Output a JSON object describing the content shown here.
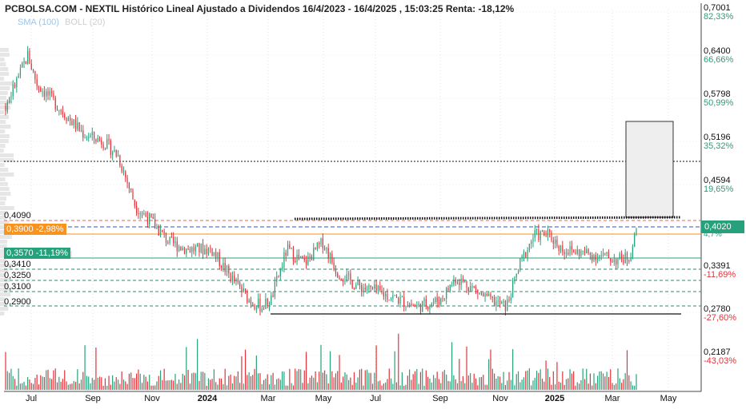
{
  "header": {
    "title": "PCBOLSA.COM - NEXTIL Histórico Lineal Ajustado a Dividendos 16/4/2023 - 16/4/2025 , 15:03:25 Renta: -18,12%",
    "indicators": [
      "SMA (100)",
      "BOLL (20)"
    ]
  },
  "chart_data": {
    "type": "candlestick",
    "title": "PCBOLSA.COM - NEXTIL Histórico Lineal Ajustado a Dividendos 16/4/2023 - 16/4/2025 , 15:03:25 Renta: -18,12%",
    "x_range": [
      "2023-06-01",
      "2025-05-31"
    ],
    "y_range": [
      0.278,
      0.7001
    ],
    "x_ticks": [
      "Jul",
      "Sep",
      "Nov",
      "2024",
      "Mar",
      "May",
      "Jul",
      "Sep",
      "Nov",
      "2025",
      "Mar",
      "May"
    ],
    "price_axis": [
      {
        "price": "0,7001",
        "pct": "82,33%"
      },
      {
        "price": "0,6400",
        "pct": "66,66%"
      },
      {
        "price": "0,5798",
        "pct": "50,99%"
      },
      {
        "price": "0,5196",
        "pct": "35,32%"
      },
      {
        "price": "0,4594",
        "pct": "19,65%"
      },
      {
        "price": "0,3391",
        "pct": "-11,69%"
      },
      {
        "price": "0,2780",
        "pct": "-27,60%"
      },
      {
        "price": "0,2187",
        "pct": "-43,03%"
      }
    ],
    "current": {
      "price": "0,4020",
      "pct": "4,7%"
    },
    "levels": {
      "l4090": "0,4090",
      "l3900": "0,3900",
      "l3900_pct": "-2,98%",
      "l3570": "0,3570",
      "l3570_pct": "-11,19%",
      "l3410": "0,3410",
      "l3250": "0,3250",
      "l3100": "0,3100",
      "l2900": "0,2900"
    },
    "anchors": [
      {
        "date": "2023-06-01",
        "close": 0.57
      },
      {
        "date": "2023-06-15",
        "close": 0.61
      },
      {
        "date": "2023-06-25",
        "close": 0.64
      },
      {
        "date": "2023-07-05",
        "close": 0.6
      },
      {
        "date": "2023-07-20",
        "close": 0.58
      },
      {
        "date": "2023-08-10",
        "close": 0.55
      },
      {
        "date": "2023-08-25",
        "close": 0.53
      },
      {
        "date": "2023-09-15",
        "close": 0.52
      },
      {
        "date": "2023-10-01",
        "close": 0.5
      },
      {
        "date": "2023-10-20",
        "close": 0.43
      },
      {
        "date": "2023-11-05",
        "close": 0.41
      },
      {
        "date": "2023-11-25",
        "close": 0.38
      },
      {
        "date": "2023-12-15",
        "close": 0.37
      },
      {
        "date": "2024-01-10",
        "close": 0.37
      },
      {
        "date": "2024-02-01",
        "close": 0.33
      },
      {
        "date": "2024-02-20",
        "close": 0.3
      },
      {
        "date": "2024-03-05",
        "close": 0.29
      },
      {
        "date": "2024-03-15",
        "close": 0.3
      },
      {
        "date": "2024-04-01",
        "close": 0.37
      },
      {
        "date": "2024-04-20",
        "close": 0.35
      },
      {
        "date": "2024-05-10",
        "close": 0.38
      },
      {
        "date": "2024-05-25",
        "close": 0.34
      },
      {
        "date": "2024-06-15",
        "close": 0.32
      },
      {
        "date": "2024-07-10",
        "close": 0.31
      },
      {
        "date": "2024-08-01",
        "close": 0.3
      },
      {
        "date": "2024-08-20",
        "close": 0.29
      },
      {
        "date": "2024-09-15",
        "close": 0.3
      },
      {
        "date": "2024-10-01",
        "close": 0.33
      },
      {
        "date": "2024-10-15",
        "close": 0.32
      },
      {
        "date": "2024-11-05",
        "close": 0.3
      },
      {
        "date": "2024-11-25",
        "close": 0.29
      },
      {
        "date": "2024-12-10",
        "close": 0.35
      },
      {
        "date": "2024-12-25",
        "close": 0.39
      },
      {
        "date": "2025-01-10",
        "close": 0.39
      },
      {
        "date": "2025-01-25",
        "close": 0.37
      },
      {
        "date": "2025-02-15",
        "close": 0.365
      },
      {
        "date": "2025-03-10",
        "close": 0.36
      },
      {
        "date": "2025-03-25",
        "close": 0.355
      },
      {
        "date": "2025-04-08",
        "close": 0.36
      },
      {
        "date": "2025-04-16",
        "close": 0.402
      }
    ]
  }
}
